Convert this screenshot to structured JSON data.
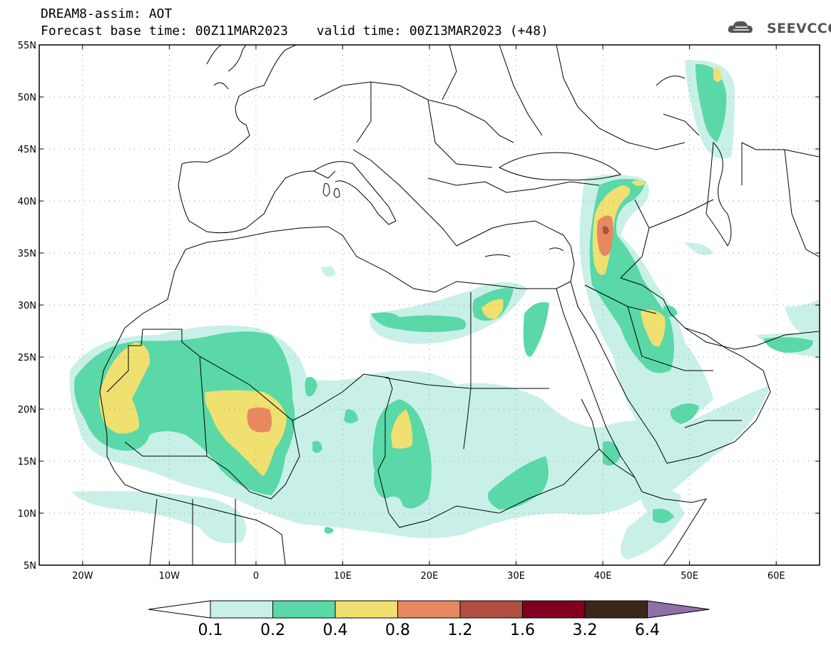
{
  "header": {
    "title": "DREAM8-assim: AOT",
    "base_time": "Forecast base time: 00Z11MAR2023",
    "valid_time": "valid time: 00Z13MAR2023 (+48)"
  },
  "logo": {
    "text": "SEEVCCC",
    "icon": "cloud-icon"
  },
  "map": {
    "lon_range": [
      -25,
      65
    ],
    "lat_range": [
      5,
      55
    ],
    "lon_ticks": [
      {
        "value": -20,
        "label": "20W"
      },
      {
        "value": -10,
        "label": "10W"
      },
      {
        "value": 0,
        "label": "0"
      },
      {
        "value": 10,
        "label": "10E"
      },
      {
        "value": 20,
        "label": "20E"
      },
      {
        "value": 30,
        "label": "30E"
      },
      {
        "value": 40,
        "label": "40E"
      },
      {
        "value": 50,
        "label": "50E"
      },
      {
        "value": 60,
        "label": "60E"
      }
    ],
    "lat_ticks": [
      {
        "value": 5,
        "label": "5N"
      },
      {
        "value": 10,
        "label": "10N"
      },
      {
        "value": 15,
        "label": "15N"
      },
      {
        "value": 20,
        "label": "20N"
      },
      {
        "value": 25,
        "label": "25N"
      },
      {
        "value": 30,
        "label": "30N"
      },
      {
        "value": 35,
        "label": "35N"
      },
      {
        "value": 40,
        "label": "40N"
      },
      {
        "value": 45,
        "label": "45N"
      },
      {
        "value": 50,
        "label": "50N"
      },
      {
        "value": 55,
        "label": "55N"
      }
    ]
  },
  "colorbar": {
    "colors": [
      "#c8f0e8",
      "#5ad8a8",
      "#f0e070",
      "#e88860",
      "#b05040",
      "#800020",
      "#3a2818"
    ],
    "under_color": "#ffffff",
    "over_color": "#9070a8",
    "labels": [
      "0.1",
      "0.2",
      "0.4",
      "0.8",
      "1.2",
      "1.6",
      "3.2",
      "6.4"
    ]
  }
}
